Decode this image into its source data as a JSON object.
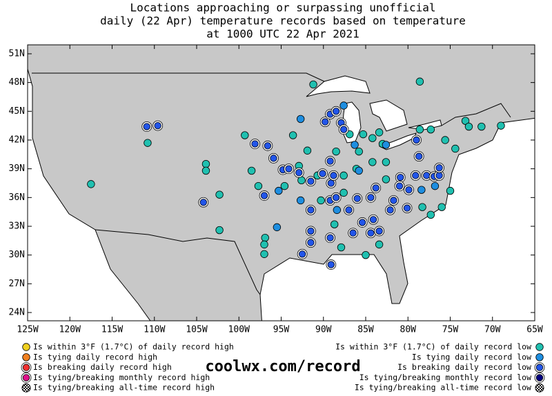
{
  "title_lines": [
    "Locations approaching or surpassing unofficial",
    "daily (22 Apr) temperature records based on temperature",
    "at 1000 UTC 22 Apr 2021"
  ],
  "lon_ticks": [
    {
      "value": -125,
      "label": "125W"
    },
    {
      "value": -120,
      "label": "120W"
    },
    {
      "value": -115,
      "label": "115W"
    },
    {
      "value": -110,
      "label": "110W"
    },
    {
      "value": -105,
      "label": "105W"
    },
    {
      "value": -100,
      "label": "100W"
    },
    {
      "value": -95,
      "label": "95W"
    },
    {
      "value": -90,
      "label": "90W"
    },
    {
      "value": -85,
      "label": "85W"
    },
    {
      "value": -80,
      "label": "80W"
    },
    {
      "value": -75,
      "label": "75W"
    },
    {
      "value": -70,
      "label": "70W"
    },
    {
      "value": -65,
      "label": "65W"
    }
  ],
  "lat_ticks": [
    {
      "value": 51,
      "label": "51N"
    },
    {
      "value": 48,
      "label": "48N"
    },
    {
      "value": 45,
      "label": "45N"
    },
    {
      "value": 42,
      "label": "42N"
    },
    {
      "value": 39,
      "label": "39N"
    },
    {
      "value": 36,
      "label": "36N"
    },
    {
      "value": 33,
      "label": "33N"
    },
    {
      "value": 30,
      "label": "30N"
    },
    {
      "value": 27,
      "label": "27N"
    },
    {
      "value": 24,
      "label": "24N"
    }
  ],
  "legend_high": [
    {
      "label": "Is within 3°F (1.7°C) of daily record high",
      "color": "#f0d020"
    },
    {
      "label": "Is tying daily record high",
      "color": "#f08020"
    },
    {
      "label": "Is breaking daily record high",
      "color": "#f03030"
    },
    {
      "label": "Is tying/breaking monthly record high",
      "color": "#e0108a"
    },
    {
      "label": "Is tying/breaking all-time record high",
      "color": "#000000"
    }
  ],
  "legend_low": [
    {
      "label": "Is within 3°F (1.7°C) of daily record low",
      "color": "#20c0b0",
      "points": [
        [
          -110.8,
          41.7
        ],
        [
          -103.9,
          39.5
        ],
        [
          -103.9,
          38.8
        ],
        [
          -102.3,
          36.3
        ],
        [
          -102.3,
          32.6
        ],
        [
          -96.9,
          31.8
        ],
        [
          -97.0,
          31.1
        ],
        [
          -97.0,
          30.1
        ],
        [
          -117.5,
          37.4
        ],
        [
          -99.3,
          42.5
        ],
        [
          -98.5,
          38.8
        ],
        [
          -97.7,
          37.2
        ],
        [
          -94.6,
          37.2
        ],
        [
          -93.6,
          42.5
        ],
        [
          -91.9,
          40.9
        ],
        [
          -92.9,
          39.3
        ],
        [
          -92.6,
          37.8
        ],
        [
          -91.2,
          47.8
        ],
        [
          -88.5,
          40.8
        ],
        [
          -86.9,
          42.6
        ],
        [
          -85.3,
          42.6
        ],
        [
          -84.2,
          42.2
        ],
        [
          -83.4,
          42.8
        ],
        [
          -83.0,
          41.6
        ],
        [
          -85.8,
          40.8
        ],
        [
          -84.2,
          39.7
        ],
        [
          -82.6,
          39.7
        ],
        [
          -86.1,
          39.0
        ],
        [
          -87.6,
          38.3
        ],
        [
          -78.6,
          43.1
        ],
        [
          -77.3,
          43.1
        ],
        [
          -75.6,
          42.0
        ],
        [
          -74.4,
          41.1
        ],
        [
          -73.2,
          44.0
        ],
        [
          -72.8,
          43.4
        ],
        [
          -71.3,
          43.4
        ],
        [
          -69.0,
          43.5
        ],
        [
          -78.6,
          48.1
        ],
        [
          -75.0,
          36.7
        ],
        [
          -76.0,
          35.0
        ],
        [
          -78.3,
          35.0
        ],
        [
          -77.3,
          34.2
        ],
        [
          -83.4,
          31.1
        ],
        [
          -85.0,
          30.0
        ],
        [
          -87.9,
          30.8
        ],
        [
          -88.7,
          33.2
        ],
        [
          -90.7,
          38.3
        ],
        [
          -90.3,
          35.7
        ],
        [
          -87.6,
          36.5
        ],
        [
          -82.6,
          37.9
        ]
      ]
    },
    {
      "label": "Is tying daily record low",
      "color": "#1e8ee0",
      "points": [
        [
          -95.5,
          32.9
        ],
        [
          -92.7,
          44.2
        ],
        [
          -87.6,
          45.6
        ],
        [
          -86.3,
          41.5
        ],
        [
          -82.6,
          41.5
        ],
        [
          -76.8,
          37.2
        ],
        [
          -78.4,
          36.8
        ],
        [
          -95.3,
          36.7
        ],
        [
          -88.4,
          34.7
        ],
        [
          -85.8,
          38.8
        ],
        [
          -92.7,
          35.7
        ]
      ]
    },
    {
      "label": "Is breaking daily record low",
      "color": "#2255e8",
      "points": [
        [
          -110.9,
          43.4
        ],
        [
          -109.6,
          43.5
        ],
        [
          -104.2,
          35.5
        ],
        [
          -98.1,
          41.6
        ],
        [
          -96.6,
          41.4
        ],
        [
          -95.9,
          40.1
        ],
        [
          -94.8,
          38.9
        ],
        [
          -94.1,
          39.0
        ],
        [
          -92.9,
          38.6
        ],
        [
          -91.5,
          37.7
        ],
        [
          -90.1,
          38.5
        ],
        [
          -89.2,
          39.8
        ],
        [
          -89.8,
          43.9
        ],
        [
          -89.2,
          44.7
        ],
        [
          -88.5,
          45.0
        ],
        [
          -87.9,
          43.8
        ],
        [
          -87.6,
          43.1
        ],
        [
          -97.0,
          36.2
        ],
        [
          -89.2,
          35.7
        ],
        [
          -88.5,
          36.0
        ],
        [
          -87.0,
          34.7
        ],
        [
          -86.0,
          35.9
        ],
        [
          -84.4,
          36.0
        ],
        [
          -85.4,
          33.4
        ],
        [
          -84.1,
          33.7
        ],
        [
          -86.5,
          32.3
        ],
        [
          -84.4,
          32.3
        ],
        [
          -83.4,
          32.5
        ],
        [
          -83.8,
          37.0
        ],
        [
          -80.9,
          38.1
        ],
        [
          -81.0,
          37.2
        ],
        [
          -79.9,
          36.8
        ],
        [
          -79.1,
          38.3
        ],
        [
          -78.7,
          40.3
        ],
        [
          -79.0,
          42.0
        ],
        [
          -77.8,
          38.3
        ],
        [
          -76.9,
          38.2
        ],
        [
          -76.3,
          38.3
        ],
        [
          -76.3,
          39.1
        ],
        [
          -89.2,
          31.8
        ],
        [
          -89.1,
          29.0
        ],
        [
          -91.5,
          31.3
        ],
        [
          -91.5,
          32.5
        ],
        [
          -91.5,
          34.7
        ],
        [
          -92.5,
          30.1
        ],
        [
          -82.1,
          34.7
        ],
        [
          -80.1,
          34.9
        ],
        [
          -81.7,
          35.7
        ],
        [
          -89.1,
          37.5
        ],
        [
          -88.8,
          38.3
        ]
      ]
    },
    {
      "label": "Is tying/breaking monthly record low",
      "color": "#000080"
    },
    {
      "label": "Is tying/breaking all-time record low",
      "color": "#000000"
    }
  ],
  "url": "coolwx.com/record"
}
